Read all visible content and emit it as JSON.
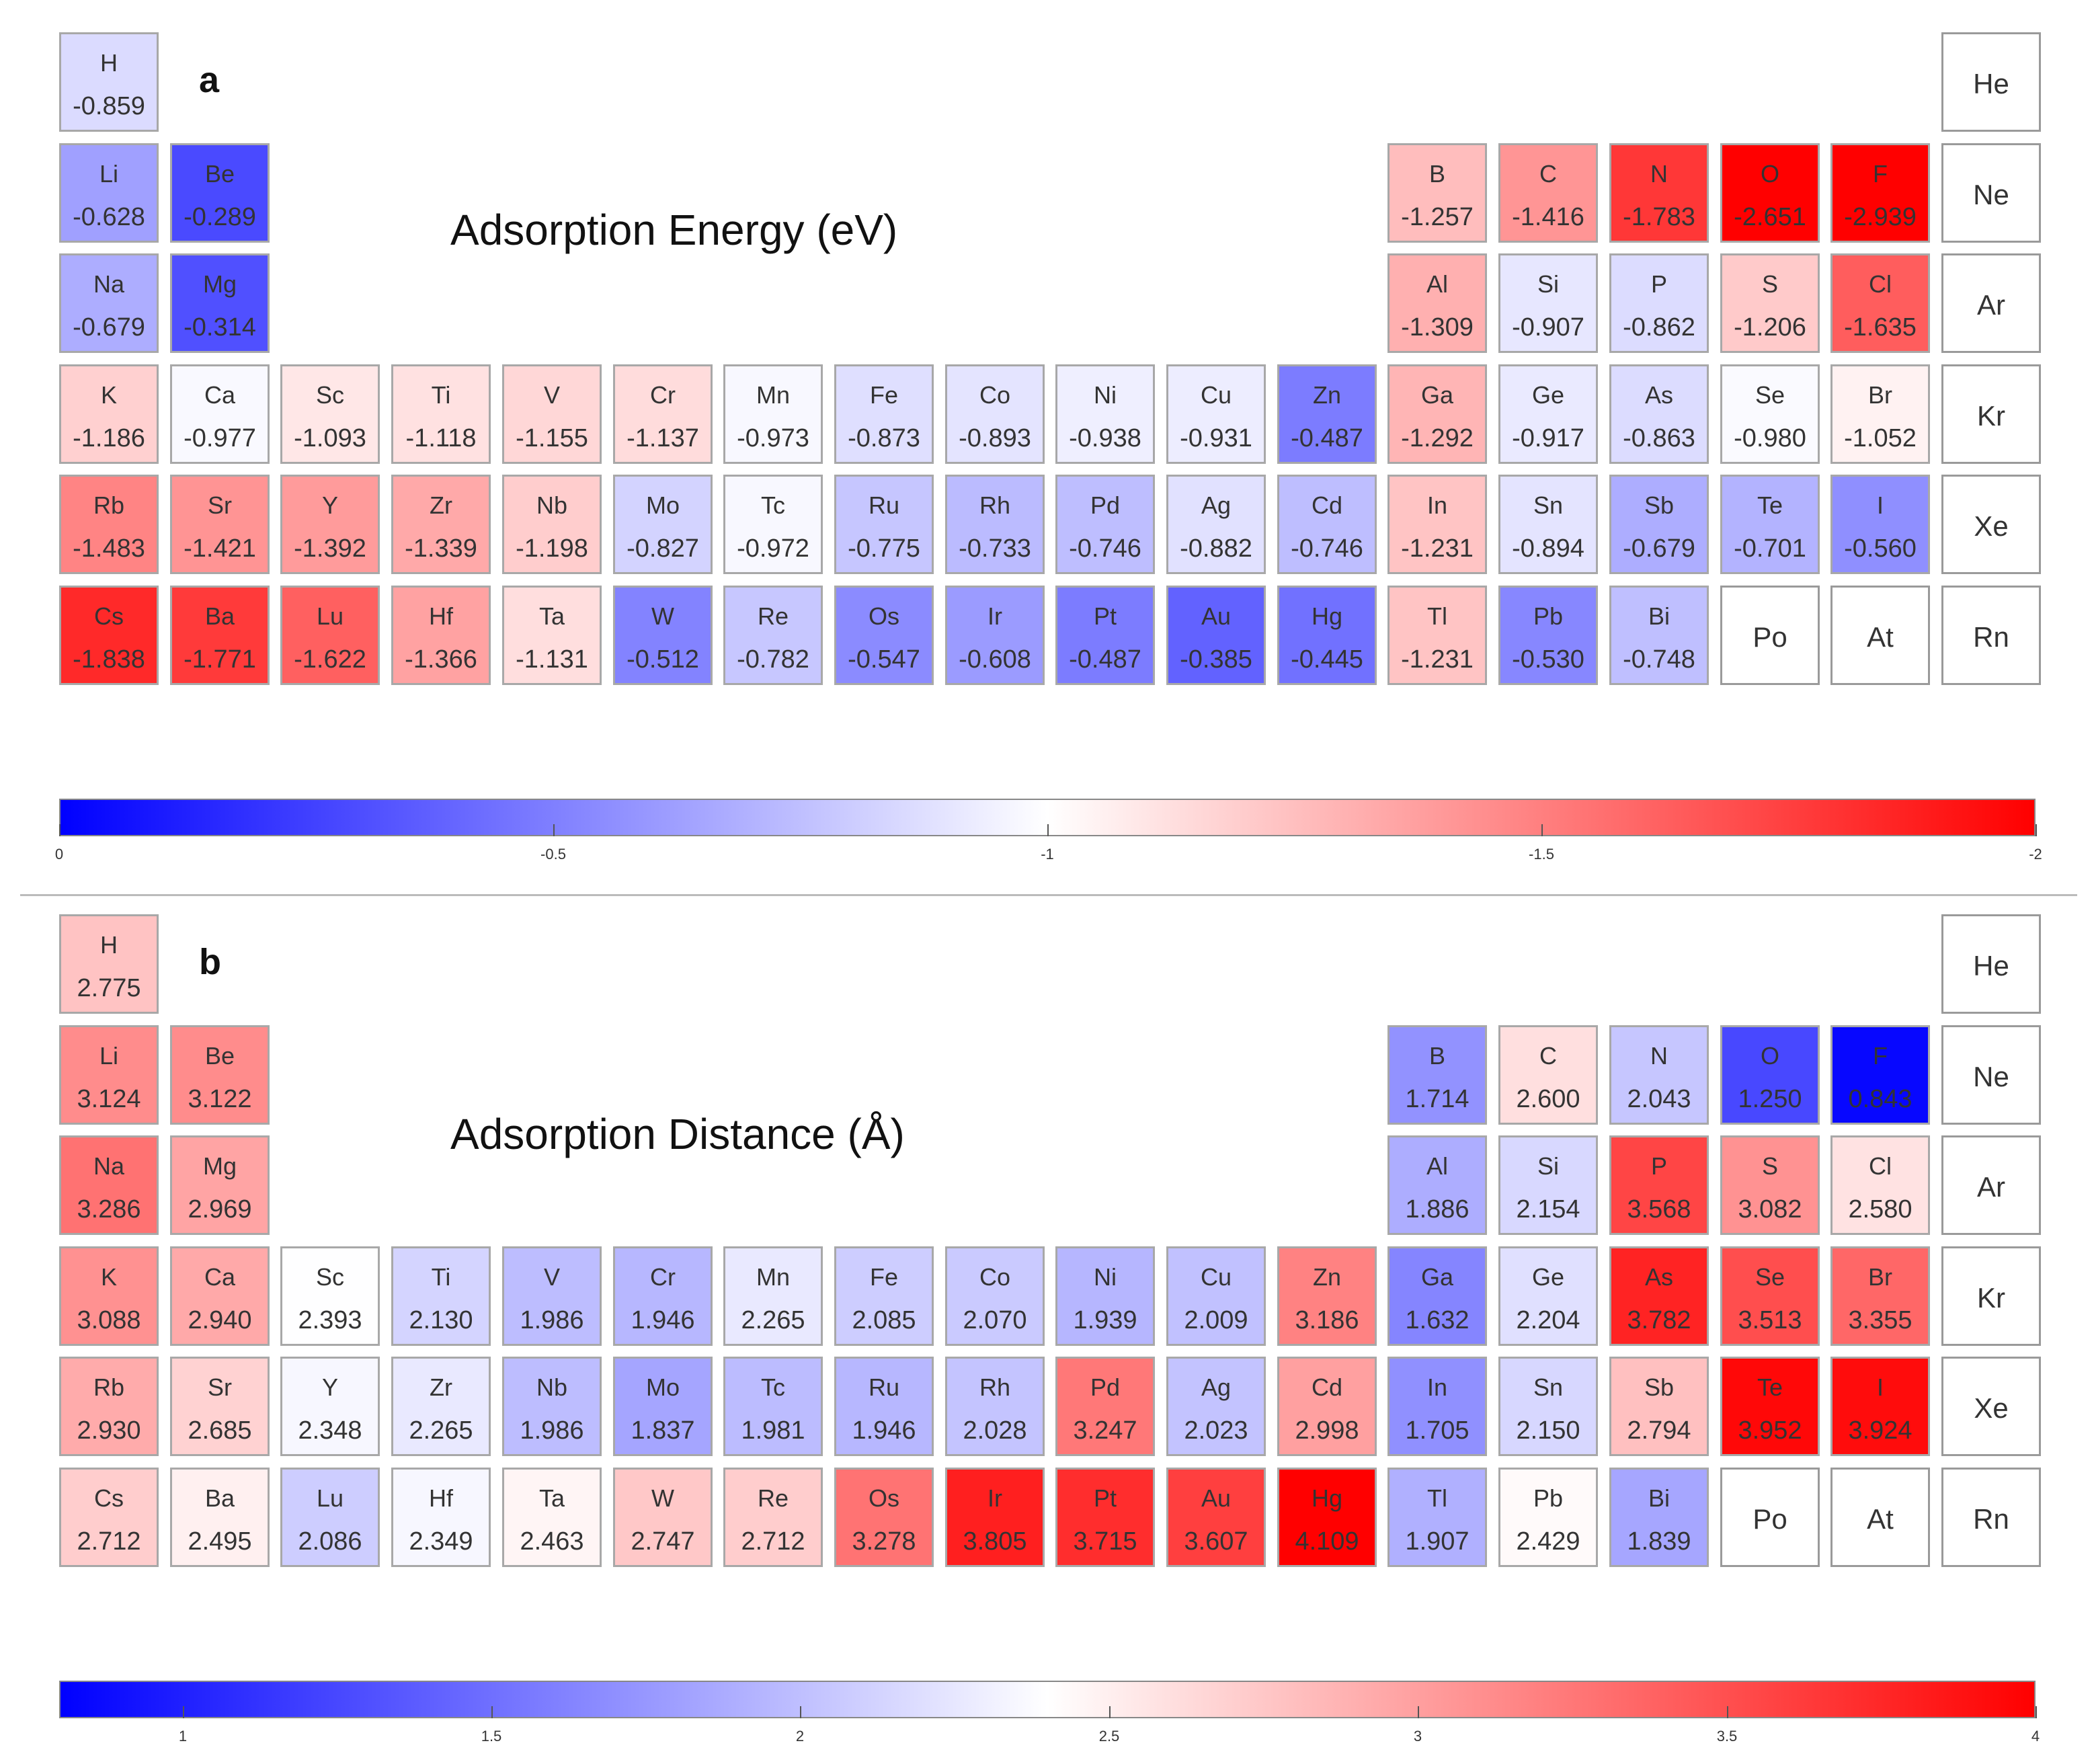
{
  "panels": [
    {
      "id": "a",
      "label": "a",
      "title": "Adsorption Energy (eV)",
      "colorbar": {
        "min": 0,
        "max": -2,
        "ticks": [
          "0",
          "-0.5",
          "-1",
          "-1.5",
          "-2"
        ],
        "tick_values": [
          0,
          -0.5,
          -1,
          -1.5,
          -2
        ]
      },
      "elements": [
        {
          "s": "H",
          "v": "-0.859",
          "r": 1,
          "c": 1
        },
        {
          "s": "He",
          "v": null,
          "r": 1,
          "c": 18
        },
        {
          "s": "Li",
          "v": "-0.628",
          "r": 2,
          "c": 1
        },
        {
          "s": "Be",
          "v": "-0.289",
          "r": 2,
          "c": 2
        },
        {
          "s": "B",
          "v": "-1.257",
          "r": 2,
          "c": 13
        },
        {
          "s": "C",
          "v": "-1.416",
          "r": 2,
          "c": 14
        },
        {
          "s": "N",
          "v": "-1.783",
          "r": 2,
          "c": 15
        },
        {
          "s": "O",
          "v": "-2.651",
          "r": 2,
          "c": 16
        },
        {
          "s": "F",
          "v": "-2.939",
          "r": 2,
          "c": 17
        },
        {
          "s": "Ne",
          "v": null,
          "r": 2,
          "c": 18
        },
        {
          "s": "Na",
          "v": "-0.679",
          "r": 3,
          "c": 1
        },
        {
          "s": "Mg",
          "v": "-0.314",
          "r": 3,
          "c": 2
        },
        {
          "s": "Al",
          "v": "-1.309",
          "r": 3,
          "c": 13
        },
        {
          "s": "Si",
          "v": "-0.907",
          "r": 3,
          "c": 14
        },
        {
          "s": "P",
          "v": "-0.862",
          "r": 3,
          "c": 15
        },
        {
          "s": "S",
          "v": "-1.206",
          "r": 3,
          "c": 16
        },
        {
          "s": "Cl",
          "v": "-1.635",
          "r": 3,
          "c": 17
        },
        {
          "s": "Ar",
          "v": null,
          "r": 3,
          "c": 18
        },
        {
          "s": "K",
          "v": "-1.186",
          "r": 4,
          "c": 1
        },
        {
          "s": "Ca",
          "v": "-0.977",
          "r": 4,
          "c": 2
        },
        {
          "s": "Sc",
          "v": "-1.093",
          "r": 4,
          "c": 3
        },
        {
          "s": "Ti",
          "v": "-1.118",
          "r": 4,
          "c": 4
        },
        {
          "s": "V",
          "v": "-1.155",
          "r": 4,
          "c": 5
        },
        {
          "s": "Cr",
          "v": "-1.137",
          "r": 4,
          "c": 6
        },
        {
          "s": "Mn",
          "v": "-0.973",
          "r": 4,
          "c": 7
        },
        {
          "s": "Fe",
          "v": "-0.873",
          "r": 4,
          "c": 8
        },
        {
          "s": "Co",
          "v": "-0.893",
          "r": 4,
          "c": 9
        },
        {
          "s": "Ni",
          "v": "-0.938",
          "r": 4,
          "c": 10
        },
        {
          "s": "Cu",
          "v": "-0.931",
          "r": 4,
          "c": 11
        },
        {
          "s": "Zn",
          "v": "-0.487",
          "r": 4,
          "c": 12
        },
        {
          "s": "Ga",
          "v": "-1.292",
          "r": 4,
          "c": 13
        },
        {
          "s": "Ge",
          "v": "-0.917",
          "r": 4,
          "c": 14
        },
        {
          "s": "As",
          "v": "-0.863",
          "r": 4,
          "c": 15
        },
        {
          "s": "Se",
          "v": "-0.980",
          "r": 4,
          "c": 16
        },
        {
          "s": "Br",
          "v": "-1.052",
          "r": 4,
          "c": 17
        },
        {
          "s": "Kr",
          "v": null,
          "r": 4,
          "c": 18
        },
        {
          "s": "Rb",
          "v": "-1.483",
          "r": 5,
          "c": 1
        },
        {
          "s": "Sr",
          "v": "-1.421",
          "r": 5,
          "c": 2
        },
        {
          "s": "Y",
          "v": "-1.392",
          "r": 5,
          "c": 3
        },
        {
          "s": "Zr",
          "v": "-1.339",
          "r": 5,
          "c": 4
        },
        {
          "s": "Nb",
          "v": "-1.198",
          "r": 5,
          "c": 5
        },
        {
          "s": "Mo",
          "v": "-0.827",
          "r": 5,
          "c": 6
        },
        {
          "s": "Tc",
          "v": "-0.972",
          "r": 5,
          "c": 7
        },
        {
          "s": "Ru",
          "v": "-0.775",
          "r": 5,
          "c": 8
        },
        {
          "s": "Rh",
          "v": "-0.733",
          "r": 5,
          "c": 9
        },
        {
          "s": "Pd",
          "v": "-0.746",
          "r": 5,
          "c": 10
        },
        {
          "s": "Ag",
          "v": "-0.882",
          "r": 5,
          "c": 11
        },
        {
          "s": "Cd",
          "v": "-0.746",
          "r": 5,
          "c": 12
        },
        {
          "s": "In",
          "v": "-1.231",
          "r": 5,
          "c": 13
        },
        {
          "s": "Sn",
          "v": "-0.894",
          "r": 5,
          "c": 14
        },
        {
          "s": "Sb",
          "v": "-0.679",
          "r": 5,
          "c": 15
        },
        {
          "s": "Te",
          "v": "-0.701",
          "r": 5,
          "c": 16
        },
        {
          "s": "I",
          "v": "-0.560",
          "r": 5,
          "c": 17
        },
        {
          "s": "Xe",
          "v": null,
          "r": 5,
          "c": 18
        },
        {
          "s": "Cs",
          "v": "-1.838",
          "r": 6,
          "c": 1
        },
        {
          "s": "Ba",
          "v": "-1.771",
          "r": 6,
          "c": 2
        },
        {
          "s": "Lu",
          "v": "-1.622",
          "r": 6,
          "c": 3
        },
        {
          "s": "Hf",
          "v": "-1.366",
          "r": 6,
          "c": 4
        },
        {
          "s": "Ta",
          "v": "-1.131",
          "r": 6,
          "c": 5
        },
        {
          "s": "W",
          "v": "-0.512",
          "r": 6,
          "c": 6
        },
        {
          "s": "Re",
          "v": "-0.782",
          "r": 6,
          "c": 7
        },
        {
          "s": "Os",
          "v": "-0.547",
          "r": 6,
          "c": 8
        },
        {
          "s": "Ir",
          "v": "-0.608",
          "r": 6,
          "c": 9
        },
        {
          "s": "Pt",
          "v": "-0.487",
          "r": 6,
          "c": 10
        },
        {
          "s": "Au",
          "v": "-0.385",
          "r": 6,
          "c": 11
        },
        {
          "s": "Hg",
          "v": "-0.445",
          "r": 6,
          "c": 12
        },
        {
          "s": "Tl",
          "v": "-1.231",
          "r": 6,
          "c": 13
        },
        {
          "s": "Pb",
          "v": "-0.530",
          "r": 6,
          "c": 14
        },
        {
          "s": "Bi",
          "v": "-0.748",
          "r": 6,
          "c": 15
        },
        {
          "s": "Po",
          "v": null,
          "r": 6,
          "c": 16
        },
        {
          "s": "At",
          "v": null,
          "r": 6,
          "c": 17
        },
        {
          "s": "Rn",
          "v": null,
          "r": 6,
          "c": 18
        }
      ]
    },
    {
      "id": "b",
      "label": "b",
      "title": "Adsorption Distance (Å)",
      "colorbar": {
        "min": 0.8,
        "max": 4,
        "ticks": [
          "1",
          "1.5",
          "2",
          "2.5",
          "3",
          "3.5",
          "4"
        ],
        "tick_values": [
          1,
          1.5,
          2,
          2.5,
          3,
          3.5,
          4
        ]
      },
      "elements": [
        {
          "s": "H",
          "v": "2.775",
          "r": 1,
          "c": 1
        },
        {
          "s": "He",
          "v": null,
          "r": 1,
          "c": 18
        },
        {
          "s": "Li",
          "v": "3.124",
          "r": 2,
          "c": 1
        },
        {
          "s": "Be",
          "v": "3.122",
          "r": 2,
          "c": 2
        },
        {
          "s": "B",
          "v": "1.714",
          "r": 2,
          "c": 13
        },
        {
          "s": "C",
          "v": "2.600",
          "r": 2,
          "c": 14
        },
        {
          "s": "N",
          "v": "2.043",
          "r": 2,
          "c": 15
        },
        {
          "s": "O",
          "v": "1.250",
          "r": 2,
          "c": 16
        },
        {
          "s": "F",
          "v": "0.843",
          "r": 2,
          "c": 17
        },
        {
          "s": "Ne",
          "v": null,
          "r": 2,
          "c": 18
        },
        {
          "s": "Na",
          "v": "3.286",
          "r": 3,
          "c": 1
        },
        {
          "s": "Mg",
          "v": "2.969",
          "r": 3,
          "c": 2
        },
        {
          "s": "Al",
          "v": "1.886",
          "r": 3,
          "c": 13
        },
        {
          "s": "Si",
          "v": "2.154",
          "r": 3,
          "c": 14
        },
        {
          "s": "P",
          "v": "3.568",
          "r": 3,
          "c": 15
        },
        {
          "s": "S",
          "v": "3.082",
          "r": 3,
          "c": 16
        },
        {
          "s": "Cl",
          "v": "2.580",
          "r": 3,
          "c": 17
        },
        {
          "s": "Ar",
          "v": null,
          "r": 3,
          "c": 18
        },
        {
          "s": "K",
          "v": "3.088",
          "r": 4,
          "c": 1
        },
        {
          "s": "Ca",
          "v": "2.940",
          "r": 4,
          "c": 2
        },
        {
          "s": "Sc",
          "v": "2.393",
          "r": 4,
          "c": 3
        },
        {
          "s": "Ti",
          "v": "2.130",
          "r": 4,
          "c": 4
        },
        {
          "s": "V",
          "v": "1.986",
          "r": 4,
          "c": 5
        },
        {
          "s": "Cr",
          "v": "1.946",
          "r": 4,
          "c": 6
        },
        {
          "s": "Mn",
          "v": "2.265",
          "r": 4,
          "c": 7
        },
        {
          "s": "Fe",
          "v": "2.085",
          "r": 4,
          "c": 8
        },
        {
          "s": "Co",
          "v": "2.070",
          "r": 4,
          "c": 9
        },
        {
          "s": "Ni",
          "v": "1.939",
          "r": 4,
          "c": 10
        },
        {
          "s": "Cu",
          "v": "2.009",
          "r": 4,
          "c": 11
        },
        {
          "s": "Zn",
          "v": "3.186",
          "r": 4,
          "c": 12
        },
        {
          "s": "Ga",
          "v": "1.632",
          "r": 4,
          "c": 13
        },
        {
          "s": "Ge",
          "v": "2.204",
          "r": 4,
          "c": 14
        },
        {
          "s": "As",
          "v": "3.782",
          "r": 4,
          "c": 15
        },
        {
          "s": "Se",
          "v": "3.513",
          "r": 4,
          "c": 16
        },
        {
          "s": "Br",
          "v": "3.355",
          "r": 4,
          "c": 17
        },
        {
          "s": "Kr",
          "v": null,
          "r": 4,
          "c": 18
        },
        {
          "s": "Rb",
          "v": "2.930",
          "r": 5,
          "c": 1
        },
        {
          "s": "Sr",
          "v": "2.685",
          "r": 5,
          "c": 2
        },
        {
          "s": "Y",
          "v": "2.348",
          "r": 5,
          "c": 3
        },
        {
          "s": "Zr",
          "v": "2.265",
          "r": 5,
          "c": 4
        },
        {
          "s": "Nb",
          "v": "1.986",
          "r": 5,
          "c": 5
        },
        {
          "s": "Mo",
          "v": "1.837",
          "r": 5,
          "c": 6
        },
        {
          "s": "Tc",
          "v": "1.981",
          "r": 5,
          "c": 7
        },
        {
          "s": "Ru",
          "v": "1.946",
          "r": 5,
          "c": 8
        },
        {
          "s": "Rh",
          "v": "2.028",
          "r": 5,
          "c": 9
        },
        {
          "s": "Pd",
          "v": "3.247",
          "r": 5,
          "c": 10
        },
        {
          "s": "Ag",
          "v": "2.023",
          "r": 5,
          "c": 11
        },
        {
          "s": "Cd",
          "v": "2.998",
          "r": 5,
          "c": 12
        },
        {
          "s": "In",
          "v": "1.705",
          "r": 5,
          "c": 13
        },
        {
          "s": "Sn",
          "v": "2.150",
          "r": 5,
          "c": 14
        },
        {
          "s": "Sb",
          "v": "2.794",
          "r": 5,
          "c": 15
        },
        {
          "s": "Te",
          "v": "3.952",
          "r": 5,
          "c": 16
        },
        {
          "s": "I",
          "v": "3.924",
          "r": 5,
          "c": 17
        },
        {
          "s": "Xe",
          "v": null,
          "r": 5,
          "c": 18
        },
        {
          "s": "Cs",
          "v": "2.712",
          "r": 6,
          "c": 1
        },
        {
          "s": "Ba",
          "v": "2.495",
          "r": 6,
          "c": 2
        },
        {
          "s": "Lu",
          "v": "2.086",
          "r": 6,
          "c": 3
        },
        {
          "s": "Hf",
          "v": "2.349",
          "r": 6,
          "c": 4
        },
        {
          "s": "Ta",
          "v": "2.463",
          "r": 6,
          "c": 5
        },
        {
          "s": "W",
          "v": "2.747",
          "r": 6,
          "c": 6
        },
        {
          "s": "Re",
          "v": "2.712",
          "r": 6,
          "c": 7
        },
        {
          "s": "Os",
          "v": "3.278",
          "r": 6,
          "c": 8
        },
        {
          "s": "Ir",
          "v": "3.805",
          "r": 6,
          "c": 9
        },
        {
          "s": "Pt",
          "v": "3.715",
          "r": 6,
          "c": 10
        },
        {
          "s": "Au",
          "v": "3.607",
          "r": 6,
          "c": 11
        },
        {
          "s": "Hg",
          "v": "4.109",
          "r": 6,
          "c": 12
        },
        {
          "s": "Tl",
          "v": "1.907",
          "r": 6,
          "c": 13
        },
        {
          "s": "Pb",
          "v": "2.429",
          "r": 6,
          "c": 14
        },
        {
          "s": "Bi",
          "v": "1.839",
          "r": 6,
          "c": 15
        },
        {
          "s": "Po",
          "v": null,
          "r": 6,
          "c": 16
        },
        {
          "s": "At",
          "v": null,
          "r": 6,
          "c": 17
        },
        {
          "s": "Rn",
          "v": null,
          "r": 6,
          "c": 18
        }
      ]
    }
  ],
  "chart_data": [
    {
      "type": "heatmap",
      "title": "Adsorption Energy (eV)",
      "colormap": "blue-white-red",
      "range": [
        0,
        -2
      ],
      "colors": {
        "low": "#0000ff",
        "mid": "#ffffff",
        "high": "#ff0000"
      }
    },
    {
      "type": "heatmap",
      "title": "Adsorption Distance (Å)",
      "colormap": "blue-white-red",
      "range": [
        0.8,
        4
      ],
      "colors": {
        "low": "#0000ff",
        "mid": "#ffffff",
        "high": "#ff0000"
      }
    }
  ]
}
